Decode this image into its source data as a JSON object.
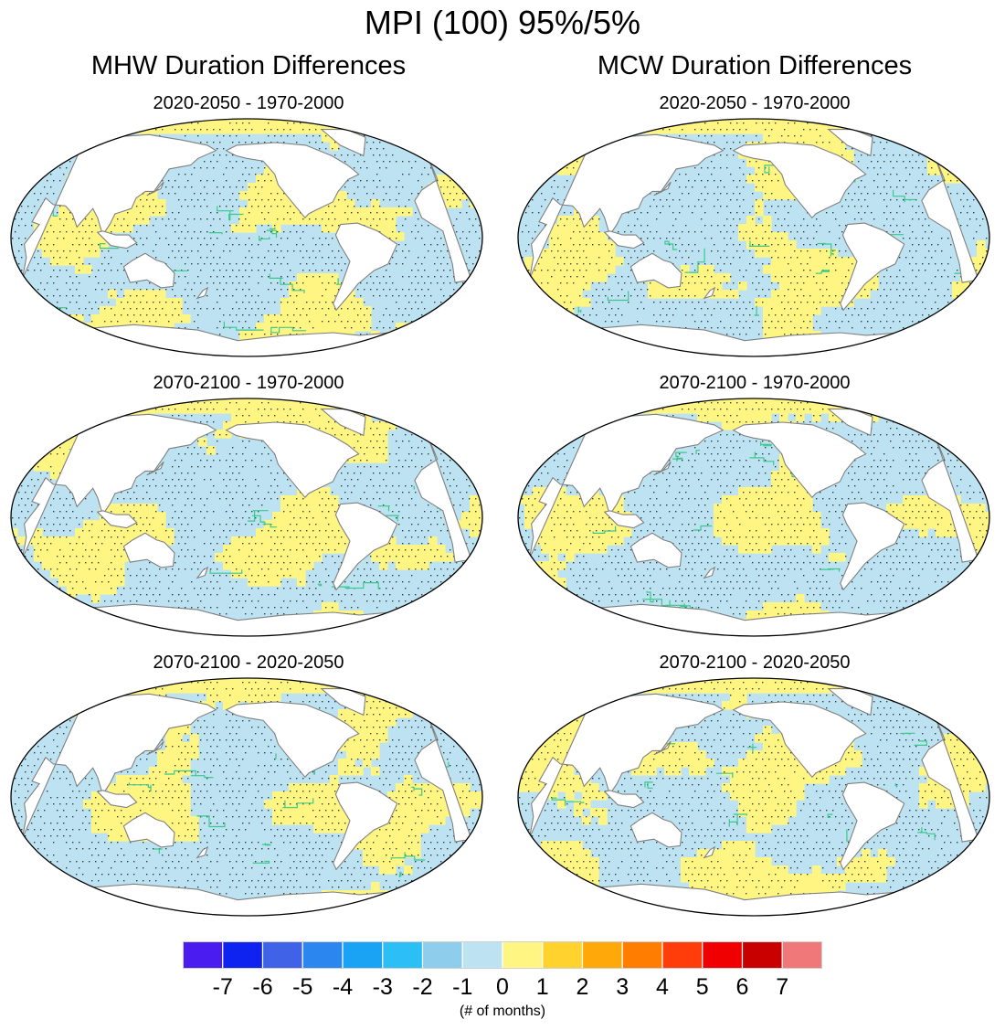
{
  "figure": {
    "title": "MPI (100) 95%/5%",
    "columns": [
      {
        "title": "MHW Duration Differences",
        "panels": [
          "2020-2050 - 1970-2000",
          "2070-2100 - 1970-2000",
          "2070-2100 - 2020-2050"
        ]
      },
      {
        "title": "MCW Duration Differences",
        "panels": [
          "2020-2050 - 1970-2000",
          "2070-2100 - 1970-2000",
          "2070-2100 - 2020-2050"
        ]
      }
    ]
  },
  "colorbar": {
    "colors": [
      "#4a1cf0",
      "#0f23f0",
      "#3f62e6",
      "#2b86f0",
      "#1aa3f5",
      "#2bbff5",
      "#8fcded",
      "#bde3f2",
      "#fff582",
      "#ffd22d",
      "#ffa80a",
      "#ff7d00",
      "#ff3d0a",
      "#f00000",
      "#c80000",
      "#f07878"
    ],
    "ticks": [
      "-7",
      "-6",
      "-5",
      "-4",
      "-3",
      "-2",
      "-1",
      "0",
      "1",
      "2",
      "3",
      "4",
      "5",
      "6",
      "7"
    ],
    "units": "(# of months)"
  },
  "colors": {
    "ocean_neg": "#bde3f2",
    "ocean_pos": "#fff582",
    "land": "#ffffff",
    "coast": "#808080",
    "contour": "#3cc88c",
    "stipple": "#000000"
  }
}
